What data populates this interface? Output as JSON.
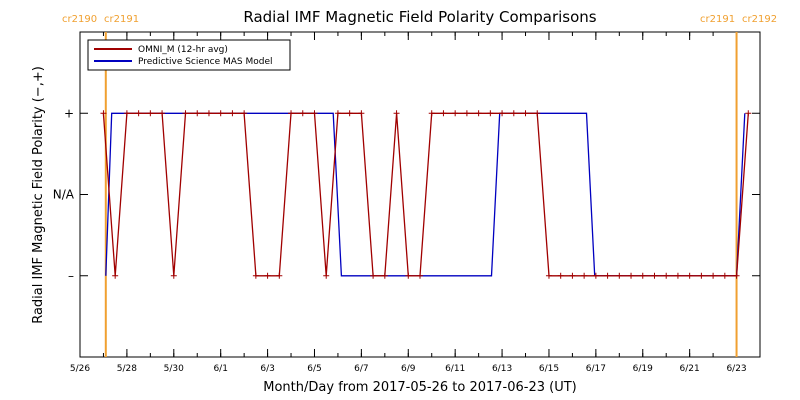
{
  "chart_data": {
    "type": "line",
    "title": "Radial IMF Magnetic Field Polarity Comparisons",
    "xlabel": "Month/Day from 2017-05-26 to 2017-06-23 (UT)",
    "ylabel": "Radial IMF Magnetic Field Polarity (−,+)",
    "xlim": [
      0,
      29
    ],
    "ylim": [
      -2,
      2
    ],
    "x_unit": "days from 2017-05-26 00:00 UT",
    "x_ticks": [
      {
        "x": 0,
        "label": "5/26"
      },
      {
        "x": 2,
        "label": "5/28"
      },
      {
        "x": 4,
        "label": "5/30"
      },
      {
        "x": 6,
        "label": "6/1"
      },
      {
        "x": 8,
        "label": "6/3"
      },
      {
        "x": 10,
        "label": "6/5"
      },
      {
        "x": 12,
        "label": "6/7"
      },
      {
        "x": 14,
        "label": "6/9"
      },
      {
        "x": 16,
        "label": "6/11"
      },
      {
        "x": 18,
        "label": "6/13"
      },
      {
        "x": 20,
        "label": "6/15"
      },
      {
        "x": 22,
        "label": "6/17"
      },
      {
        "x": 24,
        "label": "6/19"
      },
      {
        "x": 26,
        "label": "6/21"
      },
      {
        "x": 28,
        "label": "6/23"
      }
    ],
    "y_ticks": [
      {
        "y": 1,
        "label": "+"
      },
      {
        "y": 0,
        "label": "N/A"
      },
      {
        "y": -1,
        "label": "–"
      }
    ],
    "carrington_markers": [
      {
        "x": 1.1,
        "left_label": "cr2190",
        "right_label": "cr2191",
        "color": "#f0a030"
      },
      {
        "x": 28.0,
        "left_label": "cr2191",
        "right_label": "cr2192",
        "color": "#f0a030"
      }
    ],
    "legend": {
      "position": "top-left",
      "entries": [
        {
          "label": "OMNI_M (12-hr avg)",
          "color": "#a00000"
        },
        {
          "label": "Predictive Science MAS Model",
          "color": "#0000c0"
        }
      ]
    },
    "series": [
      {
        "name": "OMNI_M (12-hr avg)",
        "color": "#a00000",
        "marker": "plus",
        "x": [
          1.0,
          1.5,
          2.0,
          2.5,
          3.0,
          3.5,
          4.0,
          4.5,
          5.0,
          5.5,
          6.0,
          6.5,
          7.0,
          7.5,
          8.0,
          8.5,
          9.0,
          9.5,
          10.0,
          10.5,
          11.0,
          11.5,
          12.0,
          12.5,
          13.0,
          13.5,
          14.0,
          14.5,
          15.0,
          15.5,
          16.0,
          16.5,
          17.0,
          17.5,
          18.0,
          18.5,
          19.0,
          19.5,
          20.0,
          20.5,
          21.0,
          21.5,
          22.0,
          22.5,
          23.0,
          23.5,
          24.0,
          24.5,
          25.0,
          25.5,
          26.0,
          26.5,
          27.0,
          27.5,
          28.0,
          28.5
        ],
        "y": [
          1,
          -1,
          1,
          1,
          1,
          1,
          -1,
          1,
          1,
          1,
          1,
          1,
          1,
          -1,
          -1,
          -1,
          1,
          1,
          1,
          -1,
          1,
          1,
          1,
          -1,
          -1,
          1,
          -1,
          -1,
          1,
          1,
          1,
          1,
          1,
          1,
          1,
          1,
          1,
          1,
          -1,
          -1,
          -1,
          -1,
          -1,
          -1,
          -1,
          -1,
          -1,
          -1,
          -1,
          -1,
          -1,
          -1,
          -1,
          -1,
          -1,
          1
        ]
      },
      {
        "name": "Predictive Science MAS Model",
        "color": "#0000c0",
        "marker": "none",
        "x": [
          1.1,
          1.35,
          10.8,
          11.15,
          17.55,
          17.9,
          21.6,
          21.95,
          28.0,
          28.35
        ],
        "y": [
          -1,
          1,
          1,
          -1,
          -1,
          1,
          1,
          -1,
          -1,
          1
        ]
      }
    ]
  }
}
